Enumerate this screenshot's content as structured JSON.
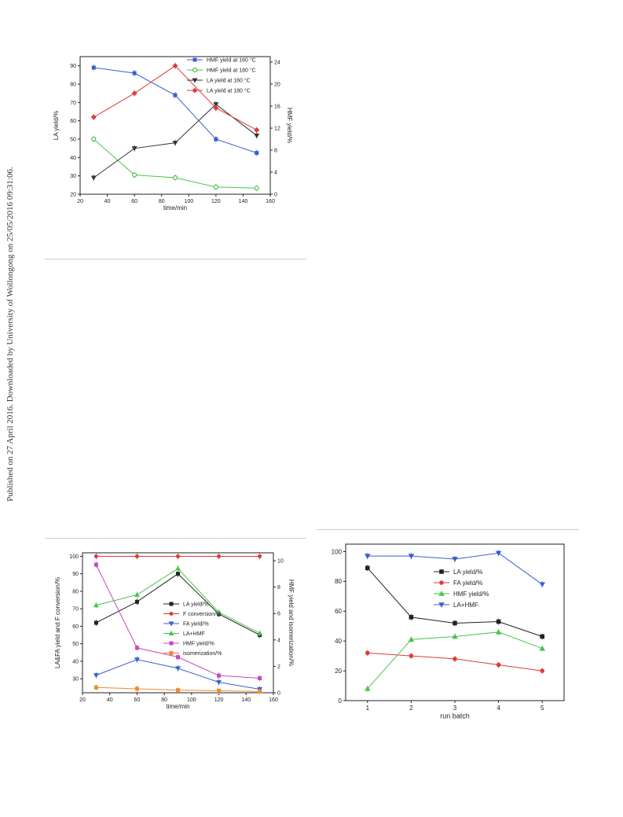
{
  "side_note": "Published on 27 April 2016. Downloaded by University of Wollongong on 25/05/2016 09:31:06.",
  "chart_data": [
    {
      "type": "line",
      "xlabel": "time/min",
      "ylabel": "LA yield/%",
      "y2label": "HMF yield/%",
      "xlim": [
        20,
        160
      ],
      "xticks": [
        20,
        40,
        60,
        80,
        100,
        120,
        140,
        160
      ],
      "ylim": [
        20,
        95
      ],
      "yticks": [
        20,
        30,
        40,
        50,
        60,
        70,
        80,
        90
      ],
      "y2lim": [
        0,
        25
      ],
      "y2ticks": [
        0,
        4,
        8,
        12,
        16,
        20,
        24
      ],
      "legend": "top-right",
      "series": [
        {
          "name": "HMF yield at 160 °C",
          "axis": "y2",
          "color": "#3b5fd1",
          "marker": "square",
          "x": [
            30,
            60,
            90,
            120,
            150
          ],
          "y": [
            23,
            22,
            18,
            10,
            7.5
          ]
        },
        {
          "name": "HMF yield at 180 °C",
          "axis": "y2",
          "color": "#4cc44c",
          "marker": "circle-open",
          "x": [
            30,
            60,
            90,
            120,
            150
          ],
          "y": [
            10,
            3.5,
            3,
            1.3,
            1.1
          ]
        },
        {
          "name": "LA yield at 160 °C",
          "axis": "y",
          "color": "#333333",
          "marker": "triangle-down",
          "x": [
            30,
            60,
            90,
            120,
            150
          ],
          "y": [
            29,
            45,
            48,
            69,
            52
          ]
        },
        {
          "name": "LA yield at 180 °C",
          "axis": "y",
          "color": "#e03a3a",
          "marker": "diamond",
          "x": [
            30,
            60,
            90,
            120,
            150
          ],
          "y": [
            62,
            75,
            90,
            67,
            55
          ]
        }
      ]
    },
    {
      "type": "line",
      "xlabel": "time/min",
      "ylabel": "LA&FA yield and F conversion/%",
      "y2label": "HMF yield and isomerization/%",
      "xlim": [
        20,
        160
      ],
      "xticks": [
        20,
        40,
        60,
        80,
        100,
        120,
        140,
        160
      ],
      "ylim": [
        22,
        102
      ],
      "yticks": [
        30,
        40,
        50,
        60,
        70,
        80,
        90,
        100
      ],
      "y2lim": [
        0,
        10.6
      ],
      "y2ticks": [
        0,
        2,
        4,
        6,
        8,
        10
      ],
      "legend": "center",
      "series": [
        {
          "name": "LA yield/%",
          "axis": "y",
          "color": "#222222",
          "marker": "square",
          "x": [
            30,
            60,
            90,
            120,
            150
          ],
          "y": [
            62,
            74,
            90,
            67,
            55
          ]
        },
        {
          "name": "F conversion/%",
          "axis": "y",
          "color": "#e03a3a",
          "marker": "circle",
          "x": [
            30,
            60,
            90,
            120,
            150
          ],
          "y": [
            100,
            100,
            100,
            100,
            100
          ]
        },
        {
          "name": "FA yield/%",
          "axis": "y",
          "color": "#3b5fd1",
          "marker": "triangle-down",
          "x": [
            30,
            60,
            90,
            120,
            150
          ],
          "y": [
            32,
            41,
            36,
            28,
            24
          ]
        },
        {
          "name": "LA+HMF",
          "axis": "y",
          "color": "#4cc44c",
          "marker": "triangle",
          "x": [
            30,
            60,
            90,
            120,
            150
          ],
          "y": [
            72,
            78,
            93,
            68,
            56
          ]
        },
        {
          "name": "HMF yield/%",
          "axis": "y2",
          "color": "#c24bc2",
          "marker": "square",
          "x": [
            30,
            60,
            90,
            120,
            150
          ],
          "y": [
            9.7,
            3.4,
            2.7,
            1.3,
            1.1
          ]
        },
        {
          "name": "isomerization/%",
          "axis": "y2",
          "color": "#f08a2a",
          "marker": "square",
          "x": [
            30,
            60,
            90,
            120,
            150
          ],
          "y": [
            0.4,
            0.3,
            0.2,
            0.15,
            0.1
          ]
        }
      ]
    },
    {
      "type": "line",
      "xlabel": "run batch",
      "ylabel": "",
      "xlim": [
        0.5,
        5.5
      ],
      "xticks": [
        1,
        2,
        3,
        4,
        5
      ],
      "ylim": [
        0,
        105
      ],
      "yticks": [
        0,
        20,
        40,
        60,
        80,
        100
      ],
      "legend": "center",
      "series": [
        {
          "name": "LA yield/%",
          "color": "#222222",
          "marker": "square",
          "x": [
            1,
            2,
            3,
            4,
            5
          ],
          "y": [
            89,
            56,
            52,
            53,
            43
          ]
        },
        {
          "name": "FA yield/%",
          "color": "#e03a3a",
          "marker": "circle",
          "x": [
            1,
            2,
            3,
            4,
            5
          ],
          "y": [
            32,
            30,
            28,
            24,
            20
          ]
        },
        {
          "name": "HMF yield/%",
          "color": "#4cc44c",
          "marker": "triangle",
          "x": [
            1,
            2,
            3,
            4,
            5
          ],
          "y": [
            8,
            41,
            43,
            46,
            35
          ]
        },
        {
          "name": "LA+HMF",
          "color": "#3b5fd1",
          "marker": "triangle-down",
          "x": [
            1,
            2,
            3,
            4,
            5
          ],
          "y": [
            97,
            97,
            95,
            99,
            78
          ]
        }
      ]
    }
  ]
}
